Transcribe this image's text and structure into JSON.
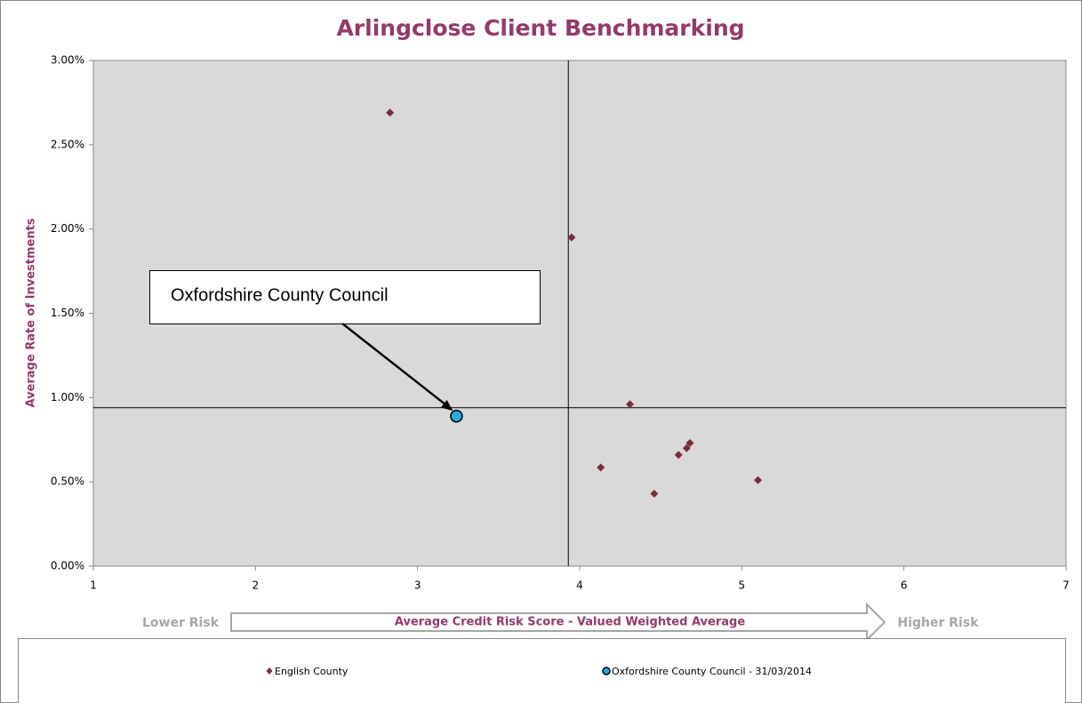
{
  "chart_data": {
    "type": "scatter",
    "title": "Arlingclose Client Benchmarking",
    "x_label": "Average Credit Risk Score - Valued Weighted Average",
    "y_label": "Average Rate of Investments",
    "x_left_note": "Lower Risk",
    "x_right_note": "Higher Risk",
    "annotation": "Oxfordshire County Council",
    "xlim": [
      1,
      7
    ],
    "xticks": [
      1,
      2,
      3,
      4,
      5,
      6,
      7
    ],
    "ylim": [
      0,
      3
    ],
    "yticks": [
      {
        "value": 0,
        "label": "0.00%"
      },
      {
        "value": 0.5,
        "label": "0.50%"
      },
      {
        "value": 1,
        "label": "1.00%"
      },
      {
        "value": 1.5,
        "label": "1.50%"
      },
      {
        "value": 2,
        "label": "2.00%"
      },
      {
        "value": 2.5,
        "label": "2.50%"
      },
      {
        "value": 3,
        "label": "3.00%"
      }
    ],
    "reference_lines": {
      "x": 3.93,
      "y": 0.94
    },
    "series": [
      {
        "name": "English County",
        "color": "#7b2c3c",
        "marker": "diamond",
        "x": [
          2.83,
          3.95,
          4.31,
          4.13,
          4.46,
          4.61,
          4.66,
          4.68,
          5.1
        ],
        "values": [
          2.69,
          1.95,
          0.96,
          0.585,
          0.43,
          0.66,
          0.7,
          0.73,
          0.51
        ]
      },
      {
        "name": "Oxfordshire County Council - 31/03/2014",
        "color": "#29a9e0",
        "marker": "circle",
        "x": [
          3.24
        ],
        "values": [
          0.89
        ]
      }
    ]
  }
}
